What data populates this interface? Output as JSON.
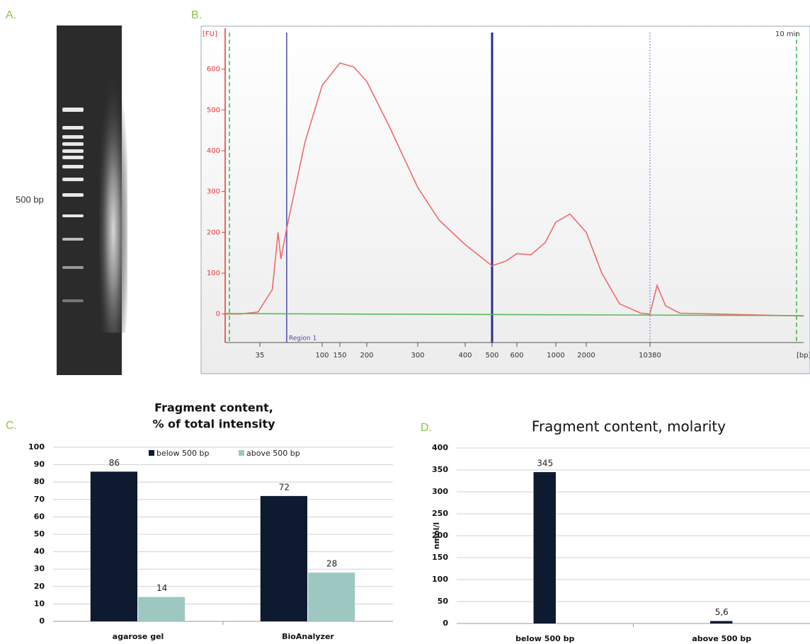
{
  "panel_labels": [
    "A.",
    "B.",
    "C.",
    "D."
  ],
  "gel": {
    "marker_label": "500 bp"
  },
  "chart_data": [
    {
      "type": "line",
      "ylabel": "[FU]",
      "xlabel": "[bp]",
      "annotation": "10 min",
      "xlim": [
        15,
        20000
      ],
      "xticks": [
        35,
        100,
        150,
        200,
        300,
        400,
        500,
        600,
        1000,
        2000,
        10380
      ],
      "ylim": [
        -115,
        700
      ],
      "yticks": [
        0,
        100,
        200,
        300,
        400,
        500,
        600
      ],
      "markers": [
        {
          "x": 63,
          "color": "#4a4ab0",
          "label": "Region 1"
        },
        {
          "x": 500,
          "color": "#2a2a9a"
        },
        {
          "x": 10380,
          "color": "#8c8ce0"
        }
      ],
      "series": [
        {
          "color": "#f06a6a",
          "x": [
            15,
            24,
            34,
            48,
            54,
            57,
            63,
            82,
            100,
            150,
            176,
            200,
            244,
            300,
            345,
            400,
            500,
            557,
            600,
            745,
            891,
            1000,
            1465,
            2000,
            4048,
            6376,
            9170,
            10380,
            10823,
            11355,
            12242,
            20000
          ],
          "values": [
            0,
            0,
            5,
            60,
            200,
            135,
            210,
            420,
            560,
            615,
            605,
            570,
            460,
            310,
            230,
            170,
            118,
            130,
            148,
            145,
            175,
            225,
            245,
            200,
            100,
            25,
            2,
            0,
            70,
            20,
            2,
            -5
          ]
        },
        {
          "color": "#5cb85c",
          "x": [
            15,
            20000
          ],
          "values": [
            1,
            -4
          ]
        }
      ]
    },
    {
      "type": "bar",
      "title": [
        "Fragment content,",
        "% of total intensity"
      ],
      "categories": [
        "agarose gel",
        "BioAnalyzer"
      ],
      "series": [
        {
          "name": "below 500 bp",
          "color": "#0d1a30",
          "values": [
            86,
            72
          ]
        },
        {
          "name": "above 500 bp",
          "color": "#9dc8c1",
          "values": [
            14,
            28
          ]
        }
      ],
      "ylim": [
        0,
        100
      ],
      "yticks": [
        0,
        10,
        20,
        30,
        40,
        50,
        60,
        70,
        80,
        90,
        100
      ],
      "grid": true
    },
    {
      "type": "bar",
      "title": "Fragment content, molarity",
      "ylabel": "nmol/l",
      "categories": [
        "below 500 bp",
        "above 500 bp"
      ],
      "series": [
        {
          "color": "#0d1a30",
          "values": [
            345,
            5.6
          ],
          "value_labels": [
            "345",
            "5,6"
          ]
        }
      ],
      "ylim": [
        0,
        400
      ],
      "yticks": [
        0,
        50,
        100,
        150,
        200,
        250,
        300,
        350,
        400
      ],
      "grid": true
    }
  ]
}
